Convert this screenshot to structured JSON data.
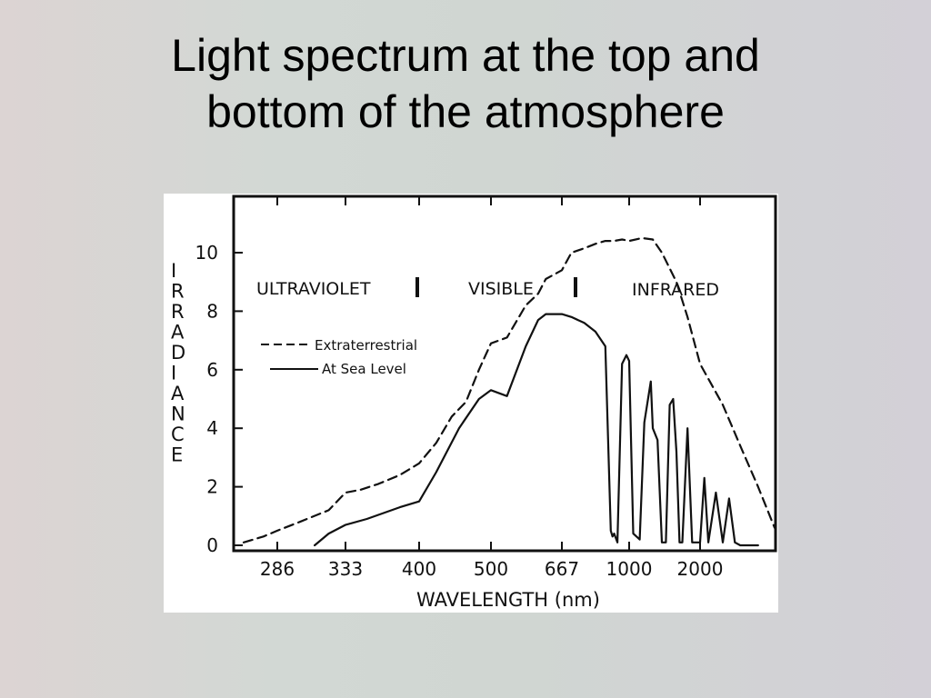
{
  "slide": {
    "title_line1": "Light spectrum at the top and",
    "title_line2": "bottom of the atmosphere"
  },
  "chart_data": {
    "type": "line",
    "xlabel": "WAVELENGTH (nm)",
    "ylabel": "IRRADIANCE",
    "ylim": [
      0,
      12
    ],
    "yticks": [
      0,
      2,
      4,
      6,
      8,
      10
    ],
    "xticks": [
      "286",
      "333",
      "400",
      "500",
      "667",
      "1000",
      "2000"
    ],
    "xticks_note": "reciprocal wavelength scale",
    "regions": [
      "ULTRAVIOLET",
      "VISIBLE",
      "INFRARED"
    ],
    "legend_position": "upper-left",
    "series": [
      {
        "name": "Extraterrestrial",
        "style": "dashed",
        "x": [
          250,
          270,
          286,
          300,
          320,
          333,
          345,
          360,
          380,
          400,
          420,
          440,
          460,
          480,
          500,
          530,
          570,
          600,
          620,
          667,
          700,
          750,
          800,
          850,
          900,
          950,
          1000,
          1100,
          1200,
          1300,
          1500,
          1700,
          2000,
          2300,
          2600,
          3000,
          3500
        ],
        "y": [
          0.1,
          0.3,
          0.5,
          0.8,
          1.2,
          1.8,
          1.9,
          2.1,
          2.4,
          2.8,
          3.5,
          4.4,
          4.9,
          6.0,
          6.9,
          7.1,
          8.2,
          8.6,
          9.1,
          9.4,
          10.0,
          10.15,
          10.3,
          10.4,
          10.4,
          10.45,
          10.4,
          10.5,
          10.45,
          10.0,
          9.0,
          7.8,
          6.2,
          4.8,
          3.4,
          2.0,
          0.6
        ]
      },
      {
        "name": "At Sea Level",
        "style": "solid",
        "x": [
          310,
          320,
          333,
          350,
          380,
          400,
          420,
          450,
          480,
          500,
          530,
          570,
          600,
          620,
          667,
          700,
          750,
          800,
          850,
          880,
          890,
          900,
          920,
          950,
          980,
          1000,
          1030,
          1080,
          1120,
          1180,
          1200,
          1250,
          1300,
          1350,
          1400,
          1450,
          1500,
          1550,
          1600,
          1700,
          1800,
          1900,
          2000,
          2050,
          2100,
          2200,
          2300,
          2400,
          2500,
          2600,
          2800,
          3000
        ],
        "y": [
          0.0,
          0.4,
          0.7,
          0.9,
          1.3,
          1.5,
          2.5,
          4.0,
          5.0,
          5.3,
          5.1,
          6.8,
          7.7,
          7.9,
          7.9,
          7.8,
          7.6,
          7.3,
          6.8,
          0.5,
          0.3,
          0.4,
          0.1,
          6.2,
          6.5,
          6.3,
          0.4,
          0.2,
          4.2,
          5.6,
          4.0,
          3.6,
          0.1,
          0.1,
          4.8,
          5.0,
          3.2,
          0.1,
          0.1,
          4.0,
          0.1,
          0.1,
          0.1,
          2.3,
          0.1,
          1.8,
          0.1,
          1.6,
          0.1,
          0.0,
          0.0,
          0.0
        ]
      }
    ]
  }
}
